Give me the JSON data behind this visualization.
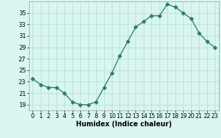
{
  "x": [
    0,
    1,
    2,
    3,
    4,
    5,
    6,
    7,
    8,
    9,
    10,
    11,
    12,
    13,
    14,
    15,
    16,
    17,
    18,
    19,
    20,
    21,
    22,
    23
  ],
  "y": [
    23.5,
    22.5,
    22.0,
    22.0,
    21.0,
    19.5,
    19.0,
    19.0,
    19.5,
    22.0,
    24.5,
    27.5,
    30.0,
    32.5,
    33.5,
    34.5,
    34.5,
    36.5,
    36.0,
    35.0,
    34.0,
    31.5,
    30.0,
    29.0
  ],
  "line_color": "#2e7d6e",
  "marker": "D",
  "markersize": 2.5,
  "linewidth": 1.0,
  "bg_color": "#d8f5f0",
  "grid_color": "#b8ddd8",
  "xlabel": "Humidex (Indice chaleur)",
  "xlim": [
    -0.5,
    23.5
  ],
  "ylim": [
    18,
    37
  ],
  "yticks": [
    19,
    21,
    23,
    25,
    27,
    29,
    31,
    33,
    35
  ],
  "xticks": [
    0,
    1,
    2,
    3,
    4,
    5,
    6,
    7,
    8,
    9,
    10,
    11,
    12,
    13,
    14,
    15,
    16,
    17,
    18,
    19,
    20,
    21,
    22,
    23
  ],
  "label_fontsize": 7,
  "tick_fontsize": 6
}
